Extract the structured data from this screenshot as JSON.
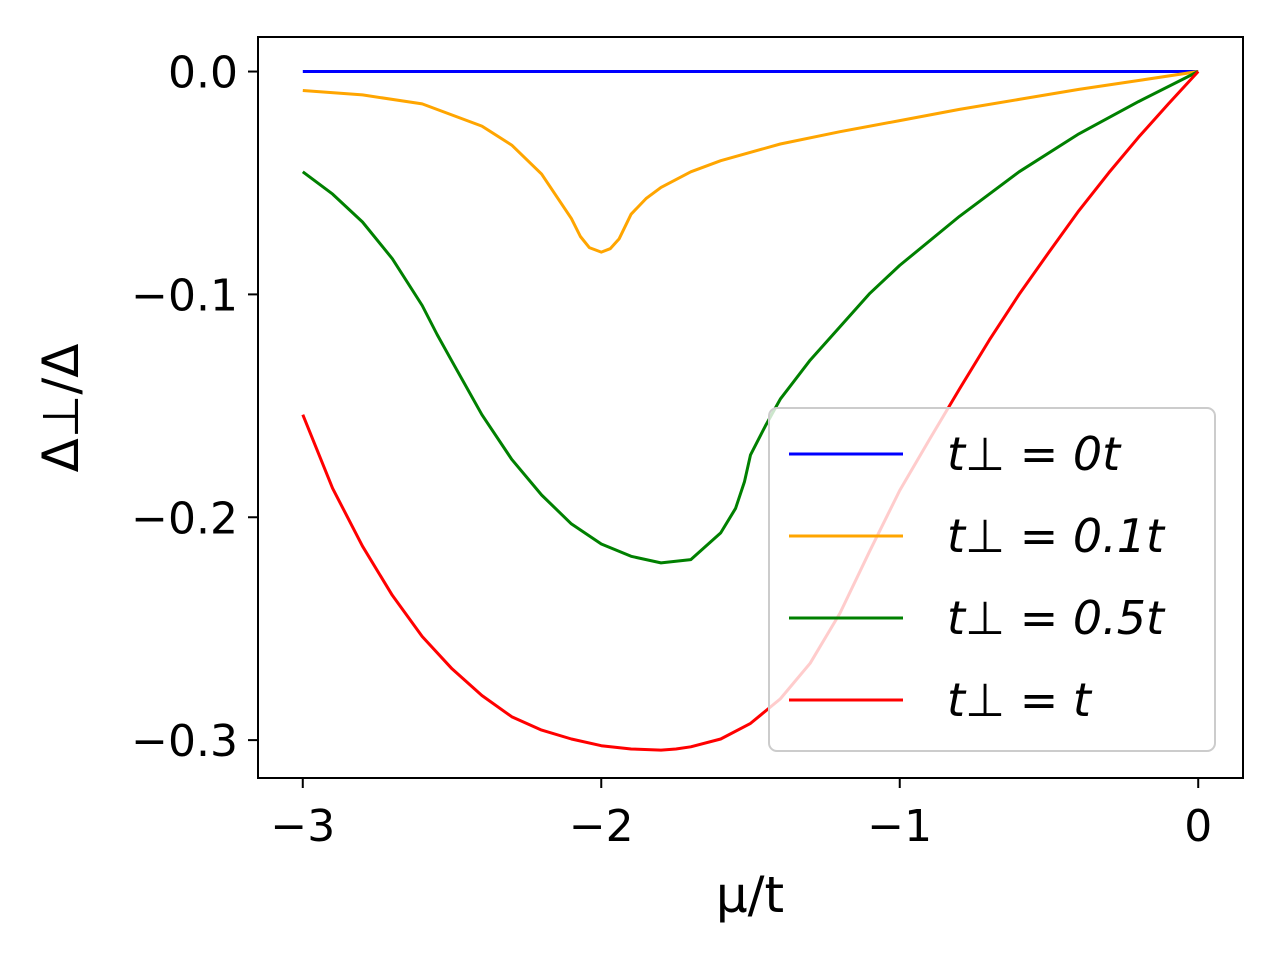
{
  "chart_data": {
    "type": "line",
    "xlabel": "μ/t",
    "ylabel": "Δ⊥/Δ",
    "xlim": [
      -3.15,
      0.15
    ],
    "ylim": [
      -0.317,
      0.0155
    ],
    "xticks": [
      -3,
      -2,
      -1,
      0
    ],
    "xtick_labels": [
      "−3",
      "−2",
      "−1",
      "0"
    ],
    "yticks": [
      0.0,
      -0.1,
      -0.2,
      -0.3
    ],
    "ytick_labels": [
      "0.0",
      "−0.1",
      "−0.2",
      "−0.3"
    ],
    "grid": false,
    "legend_position": "lower-right",
    "series": [
      {
        "name": "t⊥ = 0t",
        "color": "#0000ff",
        "x": [
          -3.0,
          -2.5,
          -2.0,
          -1.5,
          -1.0,
          -0.5,
          0.0
        ],
        "y": [
          0.0,
          0.0,
          0.0,
          0.0,
          0.0,
          0.0,
          0.0
        ]
      },
      {
        "name": "t⊥ = 0.1t",
        "color": "#ffa500",
        "x": [
          -3.0,
          -2.8,
          -2.6,
          -2.4,
          -2.3,
          -2.2,
          -2.15,
          -2.1,
          -2.07,
          -2.04,
          -2.0,
          -1.97,
          -1.94,
          -1.9,
          -1.85,
          -1.8,
          -1.7,
          -1.6,
          -1.4,
          -1.2,
          -1.0,
          -0.8,
          -0.6,
          -0.4,
          -0.2,
          0.0
        ],
        "y": [
          -0.0085,
          -0.0105,
          -0.0145,
          -0.0245,
          -0.033,
          -0.046,
          -0.056,
          -0.066,
          -0.074,
          -0.079,
          -0.081,
          -0.0795,
          -0.075,
          -0.064,
          -0.057,
          -0.052,
          -0.045,
          -0.04,
          -0.0325,
          -0.027,
          -0.022,
          -0.017,
          -0.0125,
          -0.008,
          -0.004,
          0.0
        ]
      },
      {
        "name": "t⊥ = 0.5t",
        "color": "#008000",
        "x": [
          -3.0,
          -2.9,
          -2.8,
          -2.7,
          -2.6,
          -2.55,
          -2.5,
          -2.4,
          -2.3,
          -2.2,
          -2.1,
          -2.0,
          -1.9,
          -1.8,
          -1.7,
          -1.6,
          -1.55,
          -1.52,
          -1.5,
          -1.45,
          -1.4,
          -1.3,
          -1.2,
          -1.1,
          -1.0,
          -0.8,
          -0.6,
          -0.4,
          -0.2,
          0.0
        ],
        "y": [
          -0.045,
          -0.055,
          -0.0675,
          -0.084,
          -0.105,
          -0.118,
          -0.13,
          -0.154,
          -0.174,
          -0.19,
          -0.203,
          -0.212,
          -0.2175,
          -0.2205,
          -0.219,
          -0.207,
          -0.196,
          -0.184,
          -0.172,
          -0.159,
          -0.147,
          -0.1295,
          -0.1145,
          -0.0995,
          -0.087,
          -0.065,
          -0.045,
          -0.028,
          -0.0135,
          0.0
        ]
      },
      {
        "name": "t⊥ = t",
        "color": "#ff0000",
        "x": [
          -3.0,
          -2.9,
          -2.8,
          -2.7,
          -2.6,
          -2.5,
          -2.4,
          -2.3,
          -2.2,
          -2.1,
          -2.0,
          -1.9,
          -1.8,
          -1.75,
          -1.7,
          -1.6,
          -1.5,
          -1.4,
          -1.3,
          -1.2,
          -1.1,
          -1.0,
          -0.9,
          -0.8,
          -0.7,
          -0.6,
          -0.5,
          -0.4,
          -0.3,
          -0.2,
          -0.1,
          0.0
        ],
        "y": [
          -0.154,
          -0.187,
          -0.213,
          -0.235,
          -0.2535,
          -0.268,
          -0.28,
          -0.2895,
          -0.2955,
          -0.2995,
          -0.3025,
          -0.304,
          -0.3045,
          -0.304,
          -0.303,
          -0.2995,
          -0.2925,
          -0.2815,
          -0.2655,
          -0.243,
          -0.215,
          -0.188,
          -0.165,
          -0.1425,
          -0.1205,
          -0.1,
          -0.081,
          -0.0625,
          -0.0455,
          -0.0295,
          -0.0145,
          0.0
        ]
      }
    ]
  }
}
